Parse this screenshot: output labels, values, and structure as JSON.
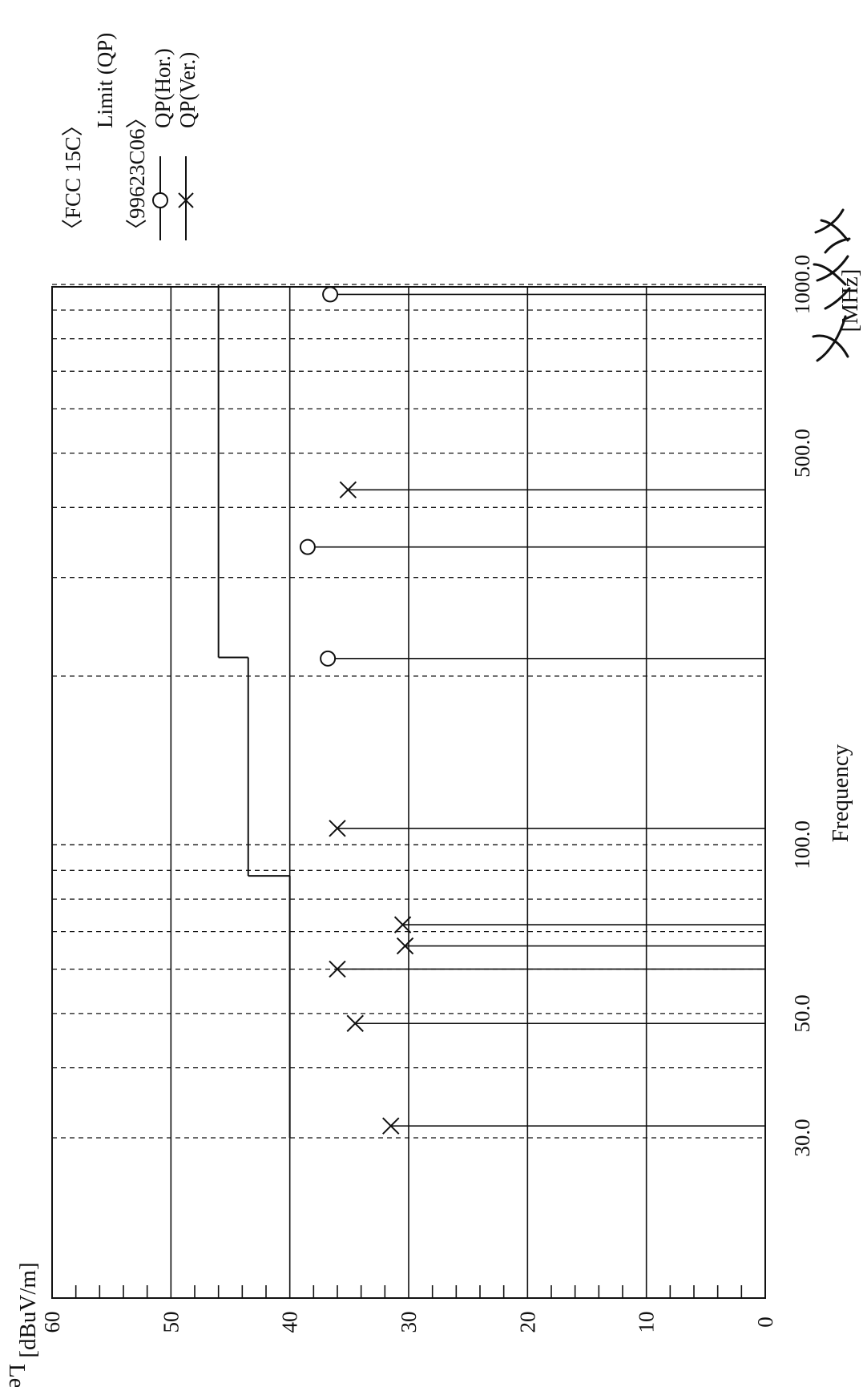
{
  "chart_data": {
    "type": "scatter",
    "title": "",
    "xlabel": "Frequency",
    "x_unit": "[MHz]",
    "ylabel": "Level",
    "y_unit": "[dBuV/m]",
    "x_scale": "log",
    "xlim": [
      30,
      1000
    ],
    "ylim": [
      0,
      60
    ],
    "x_ticks": [
      {
        "value": 30,
        "label": "30.0"
      },
      {
        "value": 50,
        "label": "50.0"
      },
      {
        "value": 100,
        "label": "100.0"
      },
      {
        "value": 500,
        "label": "500.0"
      },
      {
        "value": 1000,
        "label": "1000.0"
      }
    ],
    "y_ticks": [
      {
        "value": 0,
        "label": "0"
      },
      {
        "value": 10,
        "label": "10"
      },
      {
        "value": 20,
        "label": "20"
      },
      {
        "value": 30,
        "label": "30"
      },
      {
        "value": 40,
        "label": "40"
      },
      {
        "value": 50,
        "label": "50"
      },
      {
        "value": 60,
        "label": "60"
      }
    ],
    "grid": true,
    "legend_placement": "top-right",
    "legend": {
      "standard": "〈FCC 15C〉",
      "test_id": "〈99623C06〉"
    },
    "limit": {
      "name": "Limit (QP)",
      "segments": [
        {
          "x": [
            30,
            88
          ],
          "y": [
            40,
            40
          ]
        },
        {
          "x": [
            88,
            216
          ],
          "y": [
            43.5,
            43.5
          ]
        },
        {
          "x": [
            216,
            1000
          ],
          "y": [
            46,
            46
          ]
        }
      ]
    },
    "series": [
      {
        "name": "QP(Hor.)",
        "marker": "circle",
        "points": [
          {
            "x": 215,
            "y": 36.8
          },
          {
            "x": 340,
            "y": 38.5
          },
          {
            "x": 960,
            "y": 36.6
          }
        ]
      },
      {
        "name": "QP(Ver.)",
        "marker": "x",
        "points": [
          {
            "x": 31.5,
            "y": 31.5
          },
          {
            "x": 48,
            "y": 34.5
          },
          {
            "x": 60,
            "y": 36.0
          },
          {
            "x": 66,
            "y": 30.3
          },
          {
            "x": 72,
            "y": 30.5
          },
          {
            "x": 107,
            "y": 36.0
          },
          {
            "x": 430,
            "y": 35.1
          }
        ]
      }
    ]
  }
}
